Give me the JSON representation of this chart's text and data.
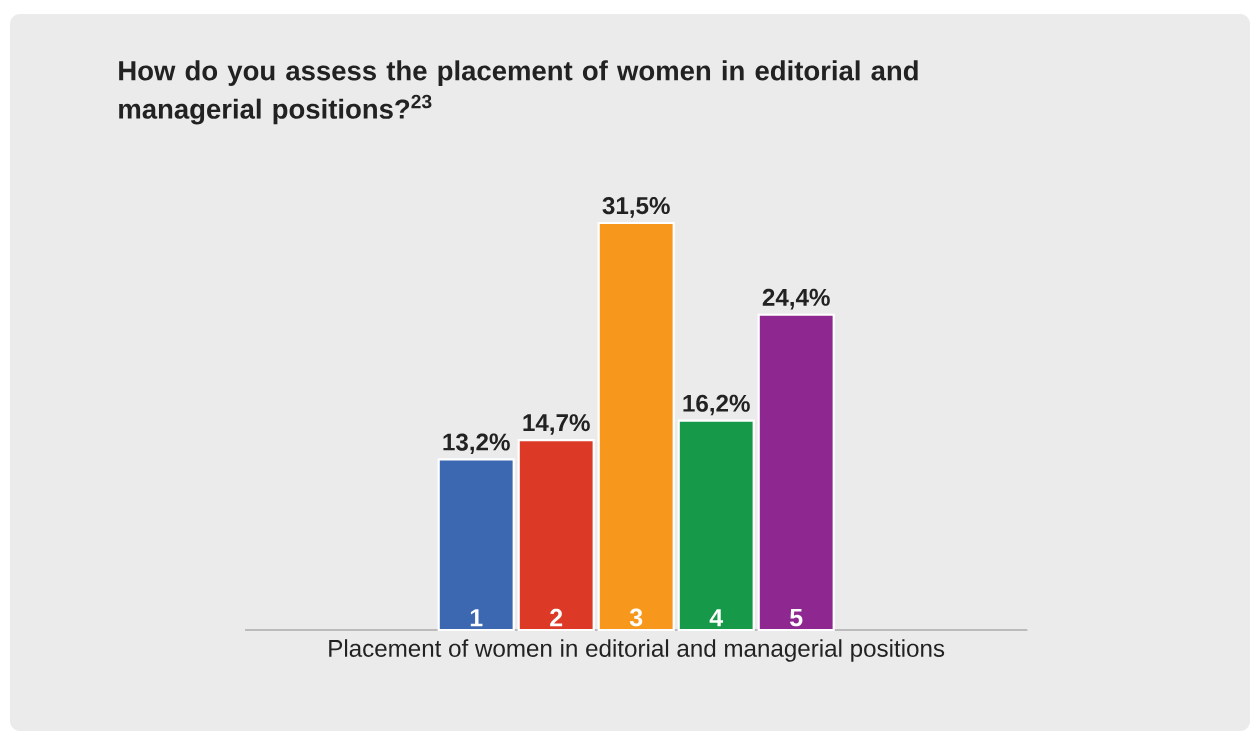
{
  "chart_data": {
    "type": "bar",
    "title": "How do you assess the placement of women in editorial and managerial positions?$^{23}$",
    "xlabel": "Placement of women in editorial and managerial positions",
    "categories": [
      "1",
      "2",
      "3",
      "4",
      "5"
    ],
    "values": [
      13.2,
      14.7,
      31.5,
      16.2,
      24.4
    ],
    "value_labels": [
      "13,2%",
      "14,7%",
      "31,5%",
      "16,2%",
      "24,4%"
    ],
    "colors": [
      "#3c67b1",
      "#dc3a26",
      "#f7981d",
      "#17994a",
      "#8e278f"
    ]
  }
}
